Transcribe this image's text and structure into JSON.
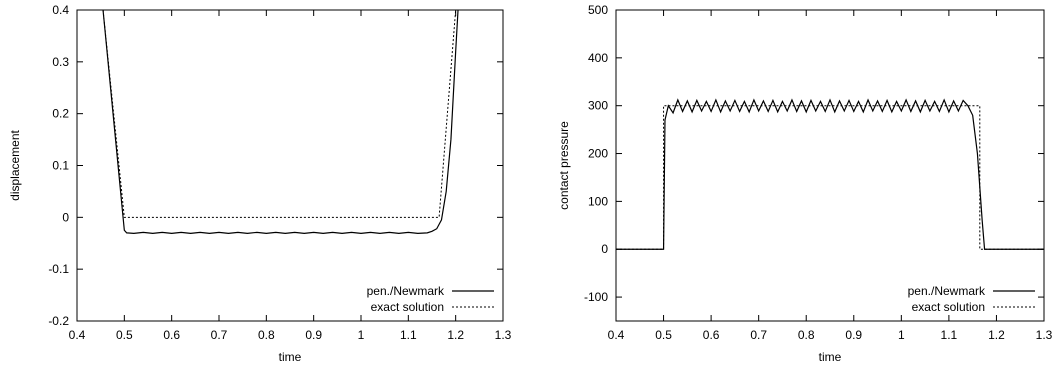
{
  "chart_data": [
    {
      "type": "line",
      "xlabel": "time",
      "ylabel": "displacement",
      "xlim": [
        0.4,
        1.3
      ],
      "ylim": [
        -0.2,
        0.4
      ],
      "xticks": [
        "0.4",
        "0.5",
        "0.6",
        "0.7",
        "0.8",
        "0.9",
        "1",
        "1.1",
        "1.2",
        "1.3"
      ],
      "yticks": [
        "-0.2",
        "-0.1",
        "0",
        "0.1",
        "0.2",
        "0.3",
        "0.4"
      ],
      "grid": false,
      "legend_position": "bottom-right",
      "series": [
        {
          "name": "pen./Newmark",
          "style": "solid",
          "x": [
            0.455,
            0.5,
            0.505,
            0.52,
            0.54,
            0.56,
            0.58,
            0.6,
            0.62,
            0.64,
            0.66,
            0.68,
            0.7,
            0.72,
            0.74,
            0.76,
            0.78,
            0.8,
            0.82,
            0.84,
            0.86,
            0.88,
            0.9,
            0.92,
            0.94,
            0.96,
            0.98,
            1.0,
            1.02,
            1.04,
            1.06,
            1.08,
            1.1,
            1.12,
            1.14,
            1.15,
            1.16,
            1.17,
            1.18,
            1.19,
            1.2,
            1.205
          ],
          "y": [
            0.4,
            -0.025,
            -0.03,
            -0.031,
            -0.029,
            -0.031,
            -0.029,
            -0.031,
            -0.029,
            -0.031,
            -0.029,
            -0.031,
            -0.029,
            -0.031,
            -0.029,
            -0.031,
            -0.029,
            -0.031,
            -0.029,
            -0.031,
            -0.029,
            -0.031,
            -0.029,
            -0.031,
            -0.029,
            -0.031,
            -0.029,
            -0.031,
            -0.029,
            -0.031,
            -0.029,
            -0.031,
            -0.029,
            -0.031,
            -0.03,
            -0.027,
            -0.022,
            -0.005,
            0.05,
            0.15,
            0.32,
            0.4
          ]
        },
        {
          "name": "exact solution",
          "style": "dotted",
          "x": [
            0.455,
            0.5,
            0.505,
            1.165,
            1.2
          ],
          "y": [
            0.4,
            0.0,
            0.0,
            0.0,
            0.4
          ]
        }
      ]
    },
    {
      "type": "line",
      "xlabel": "time",
      "ylabel": "contact pressure",
      "xlim": [
        0.4,
        1.3
      ],
      "ylim": [
        -150,
        500
      ],
      "xticks": [
        "0.4",
        "0.5",
        "0.6",
        "0.7",
        "0.8",
        "0.9",
        "1",
        "1.1",
        "1.2",
        "1.3"
      ],
      "yticks": [
        "-100",
        "0",
        "100",
        "200",
        "300",
        "400",
        "500"
      ],
      "grid": false,
      "legend_position": "bottom-right",
      "series": [
        {
          "name": "pen./Newmark",
          "style": "solid",
          "x": [
            0.4,
            0.5,
            0.503,
            0.51,
            0.52,
            0.53,
            0.54,
            0.55,
            0.56,
            0.57,
            0.58,
            0.59,
            0.6,
            0.61,
            0.62,
            0.63,
            0.64,
            0.65,
            0.66,
            0.67,
            0.68,
            0.69,
            0.7,
            0.71,
            0.72,
            0.73,
            0.74,
            0.75,
            0.76,
            0.77,
            0.78,
            0.79,
            0.8,
            0.81,
            0.82,
            0.83,
            0.84,
            0.85,
            0.86,
            0.87,
            0.88,
            0.89,
            0.9,
            0.91,
            0.92,
            0.93,
            0.94,
            0.95,
            0.96,
            0.97,
            0.98,
            0.99,
            1.0,
            1.01,
            1.02,
            1.03,
            1.04,
            1.05,
            1.06,
            1.07,
            1.08,
            1.09,
            1.1,
            1.11,
            1.12,
            1.13,
            1.14,
            1.15,
            1.155,
            1.16,
            1.17,
            1.175,
            1.3
          ],
          "y": [
            0,
            0,
            270,
            300,
            285,
            312,
            288,
            310,
            287,
            311,
            289,
            309,
            288,
            312,
            287,
            310,
            289,
            311,
            288,
            309,
            287,
            312,
            289,
            310,
            288,
            311,
            287,
            309,
            289,
            312,
            288,
            310,
            287,
            311,
            289,
            309,
            288,
            312,
            287,
            310,
            289,
            311,
            288,
            309,
            287,
            312,
            289,
            310,
            288,
            311,
            287,
            309,
            289,
            312,
            288,
            310,
            287,
            311,
            289,
            309,
            288,
            312,
            287,
            310,
            289,
            311,
            300,
            280,
            240,
            200,
            60,
            0,
            0
          ]
        },
        {
          "name": "exact solution",
          "style": "dotted",
          "x": [
            0.4,
            0.5,
            0.5,
            1.165,
            1.165,
            1.3
          ],
          "y": [
            0,
            0,
            300,
            300,
            0,
            0
          ]
        }
      ]
    }
  ]
}
